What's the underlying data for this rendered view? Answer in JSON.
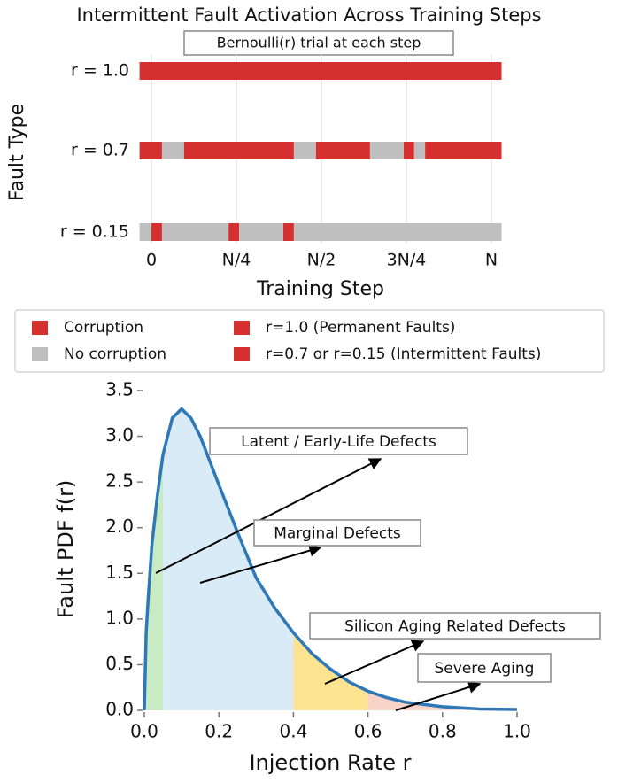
{
  "chart_data": [
    {
      "type": "broken_bar",
      "title": "Intermittent Fault Activation Across Training Steps",
      "subtitle": "Bernoulli(r) trial at each step",
      "ylabel": "Fault Type",
      "xlabel": "Training Step",
      "categories": [
        "r = 1.0",
        "r = 0.7",
        "r = 0.15"
      ],
      "segments": [
        [
          {
            "start": -0.035,
            "end": 1.03,
            "color": "#d62f2f"
          }
        ],
        [
          {
            "start": -0.035,
            "end": 0.031,
            "color": "#d62f2f"
          },
          {
            "start": 0.031,
            "end": 0.096,
            "color": "#bfbfbf"
          },
          {
            "start": 0.096,
            "end": 0.419,
            "color": "#d62f2f"
          },
          {
            "start": 0.419,
            "end": 0.484,
            "color": "#bfbfbf"
          },
          {
            "start": 0.484,
            "end": 0.643,
            "color": "#d62f2f"
          },
          {
            "start": 0.643,
            "end": 0.742,
            "color": "#bfbfbf"
          },
          {
            "start": 0.742,
            "end": 0.773,
            "color": "#d62f2f"
          },
          {
            "start": 0.773,
            "end": 0.805,
            "color": "#bfbfbf"
          },
          {
            "start": 0.805,
            "end": 1.03,
            "color": "#d62f2f"
          }
        ],
        [
          {
            "start": -0.035,
            "end": 0,
            "color": "#bfbfbf"
          },
          {
            "start": 0,
            "end": 0.031,
            "color": "#d62f2f"
          },
          {
            "start": 0.031,
            "end": 0.227,
            "color": "#bfbfbf"
          },
          {
            "start": 0.227,
            "end": 0.258,
            "color": "#d62f2f"
          },
          {
            "start": 0.258,
            "end": 0.388,
            "color": "#bfbfbf"
          },
          {
            "start": 0.388,
            "end": 0.419,
            "color": "#d62f2f"
          },
          {
            "start": 0.419,
            "end": 1.03,
            "color": "#bfbfbf"
          }
        ]
      ],
      "xlim": [
        -0.035,
        1.03
      ],
      "xticks": [
        0,
        {
          "value": 0.25,
          "label": "N/4"
        },
        {
          "value": 0.5,
          "label": "N/2"
        },
        {
          "value": 0.75,
          "label": "3N/4"
        },
        {
          "value": 1,
          "label": "N"
        }
      ],
      "grid": true,
      "legend": [
        {
          "name": "Corruption",
          "color": "#d62f2f"
        },
        {
          "name": "No corruption",
          "color": "#bfbfbf"
        },
        {
          "name": "r=1.0 (Permanent Faults)",
          "color": "#d62f2f"
        },
        {
          "name": "r=0.7 or r=0.15 (Intermittent Faults)",
          "color": "#d62f2f"
        }
      ]
    },
    {
      "type": "line",
      "xlabel": "Injection Rate r",
      "ylabel": "Fault PDF f(r)",
      "x": [
        0,
        0.005,
        0.01,
        0.02,
        0.035,
        0.05,
        0.075,
        0.1,
        0.125,
        0.15,
        0.2,
        0.25,
        0.3,
        0.35,
        0.4,
        0.45,
        0.5,
        0.55,
        0.6,
        0.65,
        0.7,
        0.8,
        0.9,
        1.0
      ],
      "values": [
        0,
        0.85,
        1.2,
        1.8,
        2.35,
        2.8,
        3.2,
        3.3,
        3.2,
        3.0,
        2.47,
        1.95,
        1.45,
        1.12,
        0.85,
        0.62,
        0.45,
        0.31,
        0.21,
        0.14,
        0.09,
        0.04,
        0.015,
        0.01
      ],
      "color": "#2f78b8",
      "regions": [
        {
          "start": 0,
          "end": 0.05,
          "color": "#c8ebc3"
        },
        {
          "start": 0.05,
          "end": 0.4,
          "color": "#d8ebf6"
        },
        {
          "start": 0.4,
          "end": 0.6,
          "color": "#fbe38f"
        },
        {
          "start": 0.6,
          "end": 1.0,
          "color": "#f8d3c8"
        }
      ],
      "annotations": [
        {
          "text": "Latent / Early-Life Defects"
        },
        {
          "text": "Marginal Defects"
        },
        {
          "text": "Silicon Aging Related Defects"
        },
        {
          "text": "Severe Aging"
        }
      ],
      "xlim": [
        0,
        1
      ],
      "ylim": [
        0,
        3.5
      ],
      "xticks": [
        {
          "value": 0,
          "label": "0.0"
        },
        0.2,
        0.4,
        0.6,
        0.8,
        {
          "value": 1,
          "label": "1.0"
        }
      ],
      "yticks": [
        {
          "value": 0,
          "label": "0.0"
        },
        0.5,
        {
          "value": 1,
          "label": "1.0"
        },
        1.5,
        {
          "value": 2,
          "label": "2.0"
        },
        2.5,
        {
          "value": 3,
          "label": "3.0"
        },
        3.5
      ]
    }
  ]
}
